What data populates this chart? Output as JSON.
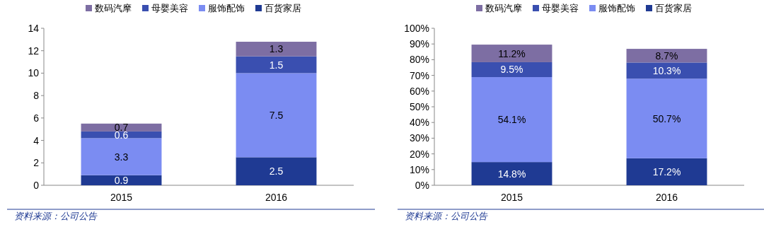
{
  "chart_data": [
    {
      "type": "bar",
      "stacked": true,
      "categories": [
        "2015",
        "2016"
      ],
      "ylim": [
        0,
        14
      ],
      "yticks": [
        0,
        2,
        4,
        6,
        8,
        10,
        12,
        14
      ],
      "legend": "top",
      "grid": false,
      "data_labels": true,
      "series": [
        {
          "name": "百货家居",
          "color": "#1f3a93",
          "values": [
            0.9,
            2.5
          ]
        },
        {
          "name": "服饰配饰",
          "color": "#7b8cf2",
          "values": [
            3.3,
            7.5
          ]
        },
        {
          "name": "母婴美容",
          "color": "#3a4fb0",
          "values": [
            0.6,
            1.5
          ]
        },
        {
          "name": "数码汽摩",
          "color": "#7d6ea3",
          "values": [
            0.7,
            1.3
          ]
        }
      ],
      "annotations": [
        "资料来源：公司公告"
      ]
    },
    {
      "type": "bar",
      "stacked": true,
      "categories": [
        "2015",
        "2016"
      ],
      "ylim": [
        0,
        100
      ],
      "yticks": [
        {
          "value": 0,
          "label": "0%"
        },
        {
          "value": 10,
          "label": "10%"
        },
        {
          "value": 20,
          "label": "20%"
        },
        {
          "value": 30,
          "label": "30%"
        },
        {
          "value": 40,
          "label": "40%"
        },
        {
          "value": 50,
          "label": "50%"
        },
        {
          "value": 60,
          "label": "60%"
        },
        {
          "value": 70,
          "label": "70%"
        },
        {
          "value": 80,
          "label": "80%"
        },
        {
          "value": 90,
          "label": "90%"
        },
        {
          "value": 100,
          "label": "100%"
        }
      ],
      "legend": "top",
      "grid": false,
      "series": [
        {
          "name": "百货家居",
          "color": "#1f3a93",
          "values": [
            14.8,
            17.2
          ],
          "value_labels": [
            "14.8%",
            "17.2%"
          ]
        },
        {
          "name": "服饰配饰",
          "color": "#7b8cf2",
          "values": [
            54.1,
            50.7
          ],
          "value_labels": [
            "54.1%",
            "50.7%"
          ]
        },
        {
          "name": "母婴美容",
          "color": "#3a4fb0",
          "values": [
            9.5,
            10.3
          ],
          "value_labels": [
            "9.5%",
            "10.3%"
          ]
        },
        {
          "name": "数码汽摩",
          "color": "#7d6ea3",
          "values": [
            11.2,
            8.7
          ],
          "value_labels": [
            "11.2%",
            "8.7%"
          ]
        }
      ],
      "annotations": [
        "资料来源：公司公告"
      ]
    }
  ]
}
